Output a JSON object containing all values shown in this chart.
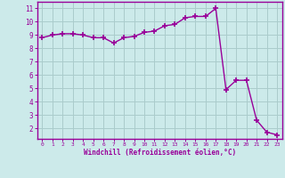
{
  "x": [
    0,
    1,
    2,
    3,
    4,
    5,
    6,
    7,
    8,
    9,
    10,
    11,
    12,
    13,
    14,
    15,
    16,
    17,
    18,
    19,
    20,
    21,
    22,
    23
  ],
  "y": [
    8.8,
    9.0,
    9.1,
    9.1,
    9.0,
    8.8,
    8.8,
    8.4,
    8.8,
    8.9,
    9.2,
    9.3,
    9.7,
    9.8,
    10.3,
    10.4,
    10.4,
    11.0,
    4.9,
    5.6,
    5.6,
    2.6,
    1.7,
    1.5
  ],
  "line_color": "#990099",
  "marker": "+",
  "marker_size": 4,
  "bg_color": "#cceaea",
  "grid_color": "#aacccc",
  "xlabel": "Windchill (Refroidissement éolien,°C)",
  "xlim": [
    -0.5,
    23.5
  ],
  "ylim": [
    1.2,
    11.5
  ],
  "yticks": [
    2,
    3,
    4,
    5,
    6,
    7,
    8,
    9,
    10,
    11
  ],
  "xticks": [
    0,
    1,
    2,
    3,
    4,
    5,
    6,
    7,
    8,
    9,
    10,
    11,
    12,
    13,
    14,
    15,
    16,
    17,
    18,
    19,
    20,
    21,
    22,
    23
  ],
  "tick_color": "#990099",
  "label_color": "#990099",
  "axis_color": "#990099",
  "spine_color": "#990099"
}
